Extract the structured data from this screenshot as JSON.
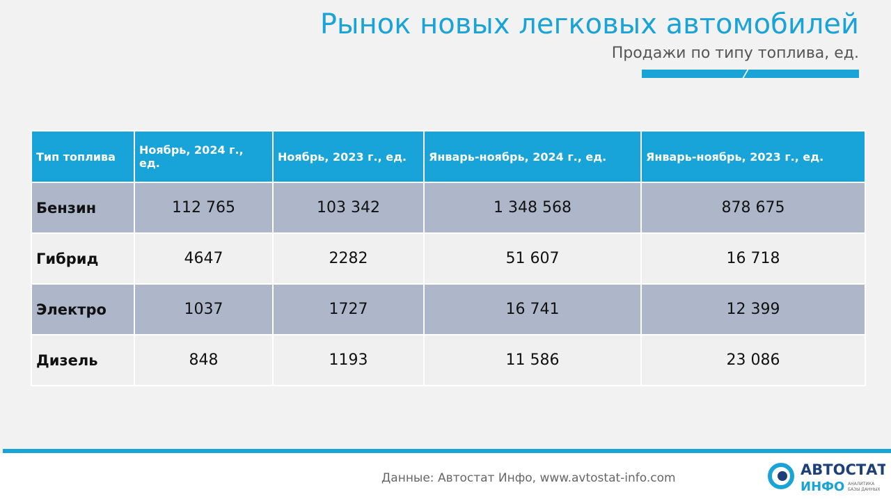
{
  "header": {
    "title": "Рынок новых легковых автомобилей",
    "subtitle": "Продажи по типу топлива, ед."
  },
  "table": {
    "columns": [
      "Тип топлива",
      "Ноябрь, 2024 г., ед.",
      "Ноябрь, 2023 г., ед.",
      "Январь-ноябрь, 2024 г., ед.",
      "Январь-ноябрь, 2023 г., ед."
    ],
    "rows": [
      [
        "Бензин",
        "112 765",
        "103 342",
        "1 348 568",
        "878 675"
      ],
      [
        "Гибрид",
        "4647",
        "2282",
        "51 607",
        "16 718"
      ],
      [
        "Электро",
        "1037",
        "1727",
        "16 741",
        "12 399"
      ],
      [
        "Дизель",
        "848",
        "1193",
        "11 586",
        "23 086"
      ]
    ]
  },
  "footer": {
    "source": "Данные: Автостат Инфо, www.avtostat-info.com",
    "logo": {
      "word1": "АВТО",
      "word2": "СТАТ",
      "word3": "ИНФО",
      "tag1": "АНАЛИТИКА",
      "tag2": "БАЗЫ ДАННЫХ"
    }
  }
}
